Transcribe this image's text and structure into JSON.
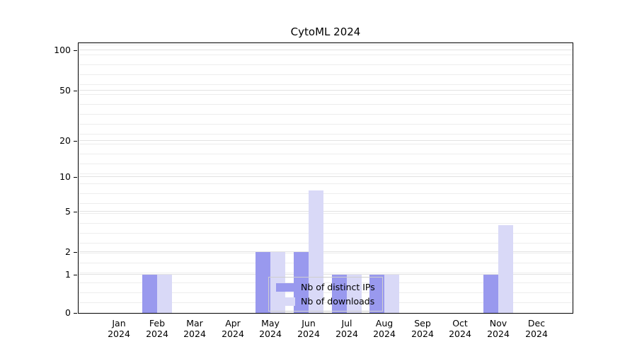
{
  "chart_data": {
    "type": "bar",
    "title": "CytoML 2024",
    "categories": [
      "Jan",
      "Feb",
      "Mar",
      "Apr",
      "May",
      "Jun",
      "Jul",
      "Aug",
      "Sep",
      "Oct",
      "Nov",
      "Dec"
    ],
    "category_year": "2024",
    "series": [
      {
        "name": "Nb of distinct IPs",
        "color": "#9999ee",
        "values": [
          0,
          1,
          0,
          0,
          2,
          2,
          1,
          1,
          0,
          0,
          1,
          0
        ]
      },
      {
        "name": "Nb of downloads",
        "color": "#d9d9f7",
        "values": [
          0,
          1,
          0,
          0,
          2,
          8,
          1,
          1,
          0,
          0,
          4,
          0
        ]
      }
    ],
    "y_ticks": [
      0,
      1,
      2,
      5,
      10,
      20,
      50,
      100
    ],
    "y_axis_scale": "log-like",
    "xlabel": "",
    "ylabel": "",
    "grid": true,
    "legend_position": "bottom-center"
  }
}
